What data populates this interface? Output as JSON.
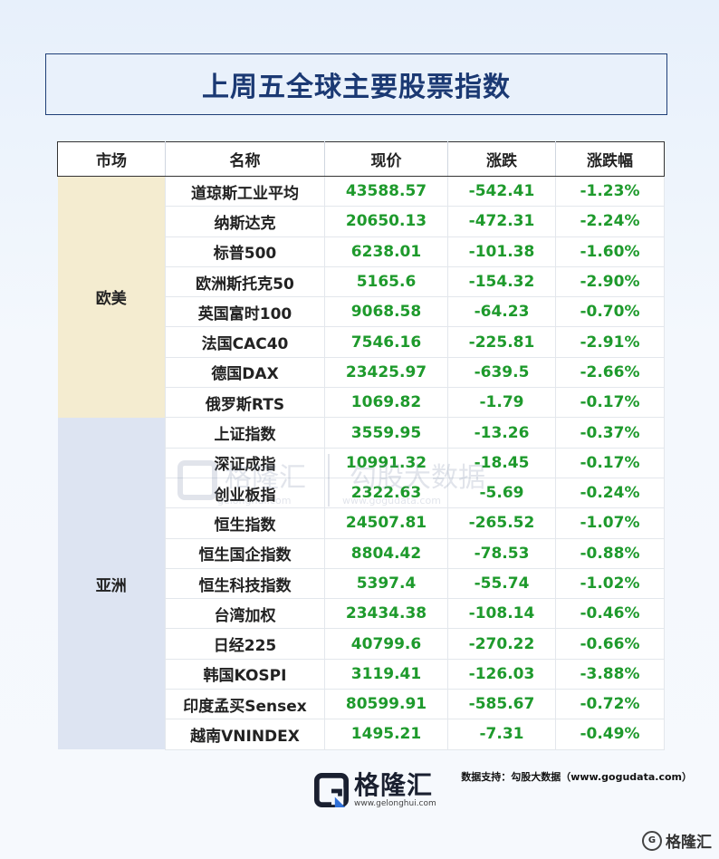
{
  "title": "上周五全球主要股票指数",
  "headers": [
    "市场",
    "名称",
    "现价",
    "涨跌",
    "涨跌幅"
  ],
  "regions": {
    "europe_america": "欧美",
    "asia": "亚洲"
  },
  "rows_eu": [
    {
      "name": "道琼斯工业平均",
      "price": "43588.57",
      "change": "-542.41",
      "pct": "-1.23%"
    },
    {
      "name": "纳斯达克",
      "price": "20650.13",
      "change": "-472.31",
      "pct": "-2.24%"
    },
    {
      "name": "标普500",
      "price": "6238.01",
      "change": "-101.38",
      "pct": "-1.60%"
    },
    {
      "name": "欧洲斯托克50",
      "price": "5165.6",
      "change": "-154.32",
      "pct": "-2.90%"
    },
    {
      "name": "英国富时100",
      "price": "9068.58",
      "change": "-64.23",
      "pct": "-0.70%"
    },
    {
      "name": "法国CAC40",
      "price": "7546.16",
      "change": "-225.81",
      "pct": "-2.91%"
    },
    {
      "name": "德国DAX",
      "price": "23425.97",
      "change": "-639.5",
      "pct": "-2.66%"
    },
    {
      "name": "俄罗斯RTS",
      "price": "1069.82",
      "change": "-1.79",
      "pct": "-0.17%"
    }
  ],
  "rows_asia": [
    {
      "name": "上证指数",
      "price": "3559.95",
      "change": "-13.26",
      "pct": "-0.37%"
    },
    {
      "name": "深证成指",
      "price": "10991.32",
      "change": "-18.45",
      "pct": "-0.17%"
    },
    {
      "name": "创业板指",
      "price": "2322.63",
      "change": "-5.69",
      "pct": "-0.24%"
    },
    {
      "name": "恒生指数",
      "price": "24507.81",
      "change": "-265.52",
      "pct": "-1.07%"
    },
    {
      "name": "恒生国企指数",
      "price": "8804.42",
      "change": "-78.53",
      "pct": "-0.88%"
    },
    {
      "name": "恒生科技指数",
      "price": "5397.4",
      "change": "-55.74",
      "pct": "-1.02%"
    },
    {
      "name": "台湾加权",
      "price": "23434.38",
      "change": "-108.14",
      "pct": "-0.46%"
    },
    {
      "name": "日经225",
      "price": "40799.6",
      "change": "-270.22",
      "pct": "-0.66%"
    },
    {
      "name": "韩国KOSPI",
      "price": "3119.41",
      "change": "-126.03",
      "pct": "-3.88%"
    },
    {
      "name": "印度孟买Sensex",
      "price": "80599.91",
      "change": "-585.67",
      "pct": "-0.72%"
    },
    {
      "name": "越南VNINDEX",
      "price": "1495.21",
      "change": "-7.31",
      "pct": "-0.49%"
    }
  ],
  "watermark": {
    "brand": "格隆汇",
    "brand_url": "gelonghui.com",
    "data_brand": "勾股大数据",
    "data_url": "www.gogudata.com"
  },
  "source": "数据支持：勾股大数据（www.gogudata.com）",
  "logo": {
    "name": "格隆汇",
    "url": "www.gelonghui.com"
  },
  "corner_badge": "格隆汇",
  "colors": {
    "title": "#1b3973",
    "positive_negative_value": "#1e9a2c",
    "europe_band": "#f4ecd0",
    "asia_band": "#dde4f2"
  },
  "icons": {
    "logo": "gelonghui-logo-icon",
    "corner": "gelonghui-corner-icon"
  }
}
